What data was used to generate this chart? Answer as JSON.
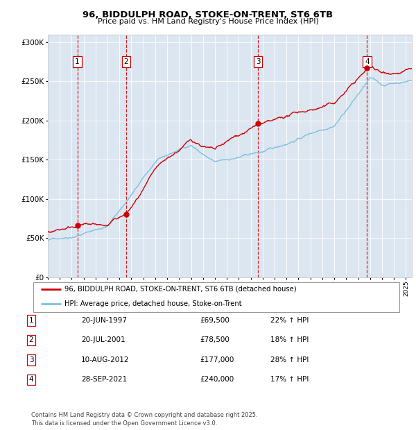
{
  "title_line1": "96, BIDDULPH ROAD, STOKE-ON-TRENT, ST6 6TB",
  "title_line2": "Price paid vs. HM Land Registry's House Price Index (HPI)",
  "bg_color": "#dce6f1",
  "ylim": [
    0,
    310000
  ],
  "yticks": [
    0,
    50000,
    100000,
    150000,
    200000,
    250000,
    300000
  ],
  "ytick_labels": [
    "£0",
    "£50K",
    "£100K",
    "£150K",
    "£200K",
    "£250K",
    "£300K"
  ],
  "hpi_color": "#7fbfdf",
  "price_color": "#cc0000",
  "vline_color": "#cc0000",
  "transactions": [
    {
      "date": 1997.47,
      "price": 69500,
      "label": "1"
    },
    {
      "date": 2001.55,
      "price": 78500,
      "label": "2"
    },
    {
      "date": 2012.61,
      "price": 177000,
      "label": "3"
    },
    {
      "date": 2021.74,
      "price": 240000,
      "label": "4"
    }
  ],
  "legend_entries": [
    {
      "label": "96, BIDDULPH ROAD, STOKE-ON-TRENT, ST6 6TB (detached house)",
      "color": "#cc0000"
    },
    {
      "label": "HPI: Average price, detached house, Stoke-on-Trent",
      "color": "#7fbfdf"
    }
  ],
  "table_rows": [
    {
      "num": "1",
      "date": "20-JUN-1997",
      "price": "£69,500",
      "note": "22% ↑ HPI"
    },
    {
      "num": "2",
      "date": "20-JUL-2001",
      "price": "£78,500",
      "note": "18% ↑ HPI"
    },
    {
      "num": "3",
      "date": "10-AUG-2012",
      "price": "£177,000",
      "note": "28% ↑ HPI"
    },
    {
      "num": "4",
      "date": "28-SEP-2021",
      "price": "£240,000",
      "note": "17% ↑ HPI"
    }
  ],
  "footnote": "Contains HM Land Registry data © Crown copyright and database right 2025.\nThis data is licensed under the Open Government Licence v3.0.",
  "xmin": 1995.0,
  "xmax": 2025.5
}
